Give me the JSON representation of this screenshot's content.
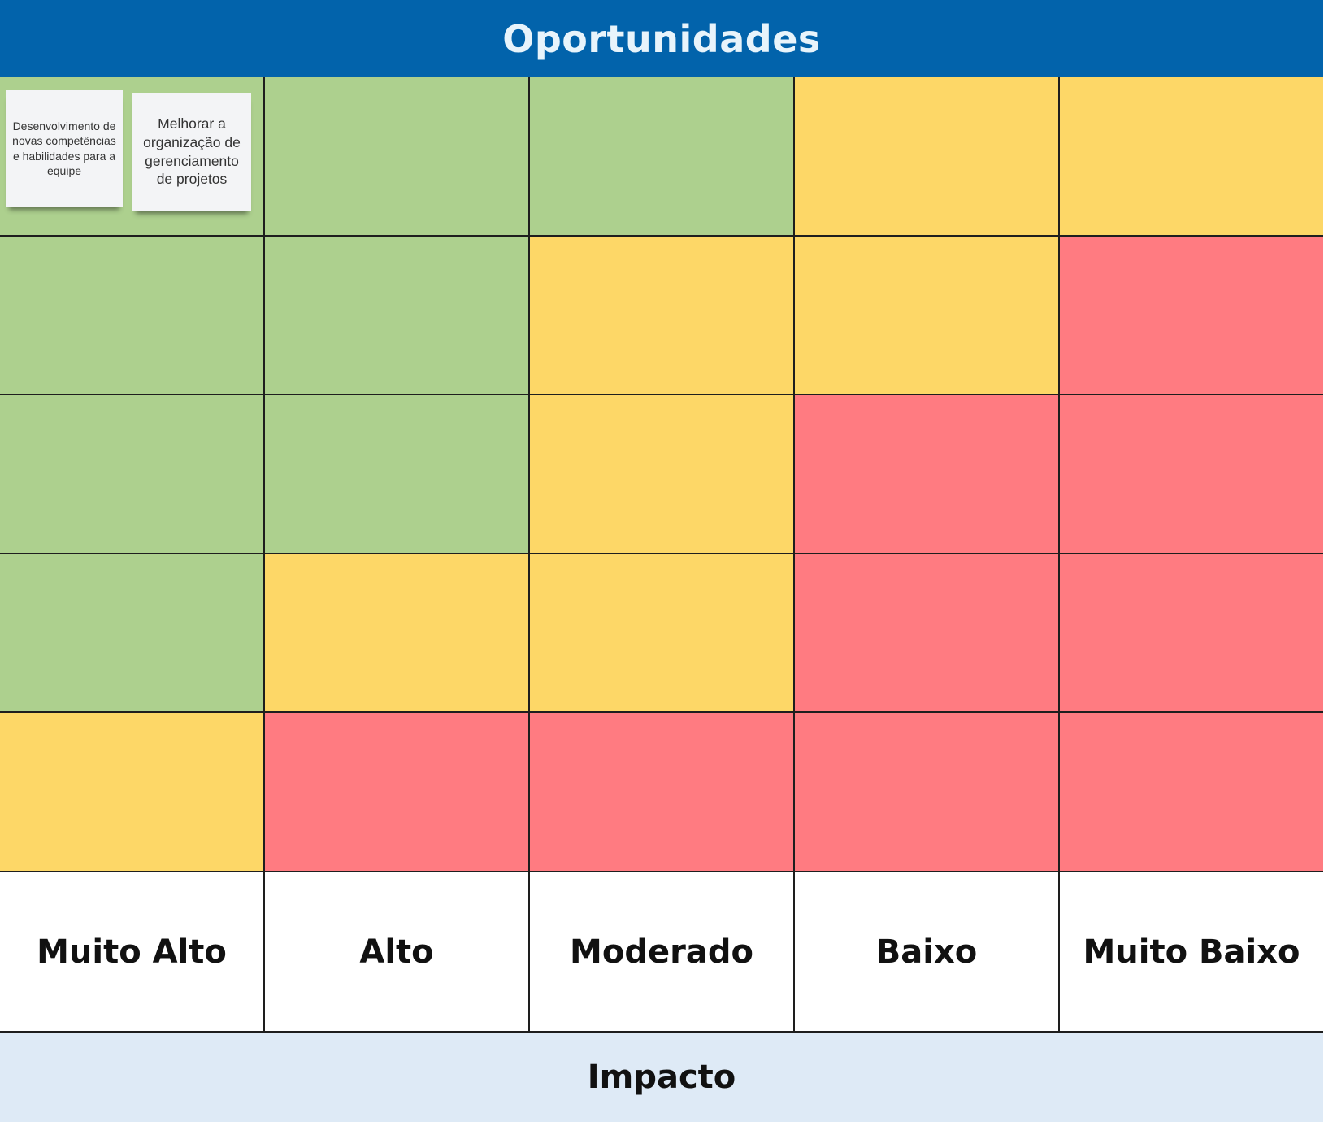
{
  "title": "Oportunidades",
  "axis_label": "Impacto",
  "impact_levels": [
    "Muito Alto",
    "Alto",
    "Moderado",
    "Baixo",
    "Muito Baixo"
  ],
  "colors": {
    "header_bg": "#0263ab",
    "header_text": "#e8f4fb",
    "green": "#add08e",
    "yellow": "#fdd767",
    "red": "#ff7b81",
    "footer_bg": "#deeaf6",
    "grid_line": "#1e1e1e",
    "sticky_bg": "#f3f4f6"
  },
  "matrix": [
    [
      "green",
      "green",
      "green",
      "yellow",
      "yellow"
    ],
    [
      "green",
      "green",
      "yellow",
      "yellow",
      "red"
    ],
    [
      "green",
      "green",
      "yellow",
      "red",
      "red"
    ],
    [
      "green",
      "yellow",
      "yellow",
      "red",
      "red"
    ],
    [
      "yellow",
      "red",
      "red",
      "red",
      "red"
    ]
  ],
  "sticky_notes": [
    {
      "text": "Desenvolvimento de novas competências e habilidades para a equipe"
    },
    {
      "text": "Melhorar a organização de gerenciamento de projetos"
    }
  ]
}
